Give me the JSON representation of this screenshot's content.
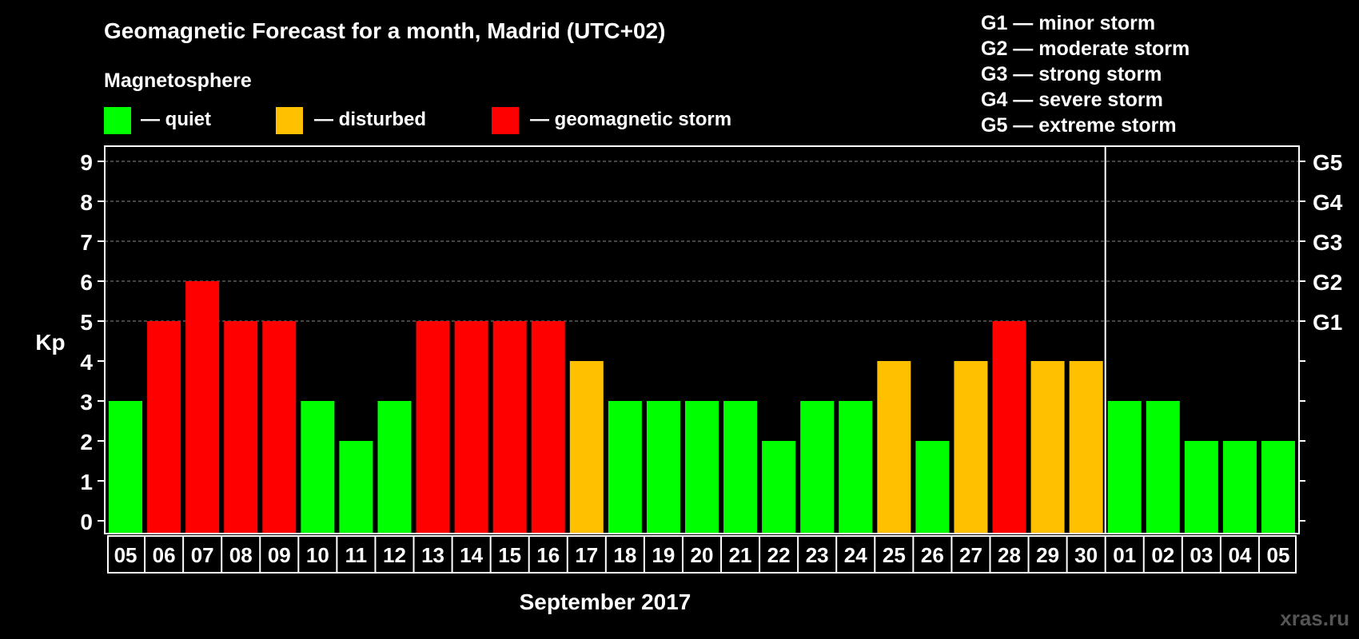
{
  "chart_data": {
    "type": "bar",
    "title": "Geomagnetic Forecast for a month, Madrid (UTC+02)",
    "legend_title": "Magnetosphere",
    "legend": [
      {
        "label": "— quiet",
        "color": "#00ff00"
      },
      {
        "label": "— disturbed",
        "color": "#ffc000"
      },
      {
        "label": "— geomagnetic storm",
        "color": "#ff0000"
      }
    ],
    "storm_scale": [
      "G1 — minor storm",
      "G2 — moderate storm",
      "G3 — strong storm",
      "G4 — severe storm",
      "G5 — extreme storm"
    ],
    "ylabel": "Kp",
    "xlabel": "September 2017",
    "ylim": [
      0,
      9
    ],
    "yticks": [
      "0",
      "1",
      "2",
      "3",
      "4",
      "5",
      "6",
      "7",
      "8",
      "9"
    ],
    "right_axis_labels": [
      {
        "y": 5,
        "label": "G1"
      },
      {
        "y": 6,
        "label": "G2"
      },
      {
        "y": 7,
        "label": "G3"
      },
      {
        "y": 8,
        "label": "G4"
      },
      {
        "y": 9,
        "label": "G5"
      }
    ],
    "grid": "dashed horizontal at Kp 5-9",
    "month_boundary_after_index": 25,
    "categories": [
      "05",
      "06",
      "07",
      "08",
      "09",
      "10",
      "11",
      "12",
      "13",
      "14",
      "15",
      "16",
      "17",
      "18",
      "19",
      "20",
      "21",
      "22",
      "23",
      "24",
      "25",
      "26",
      "27",
      "28",
      "29",
      "30",
      "01",
      "02",
      "03",
      "04",
      "05"
    ],
    "values": [
      3,
      5,
      6,
      5,
      5,
      3,
      2,
      3,
      5,
      5,
      5,
      5,
      4,
      3,
      3,
      3,
      3,
      2,
      3,
      3,
      4,
      2,
      4,
      5,
      4,
      4,
      3,
      3,
      2,
      2,
      2
    ],
    "colors": {
      "quiet": "#00ff00",
      "disturbed": "#ffc000",
      "storm": "#ff0000"
    }
  },
  "watermark": "xras.ru"
}
